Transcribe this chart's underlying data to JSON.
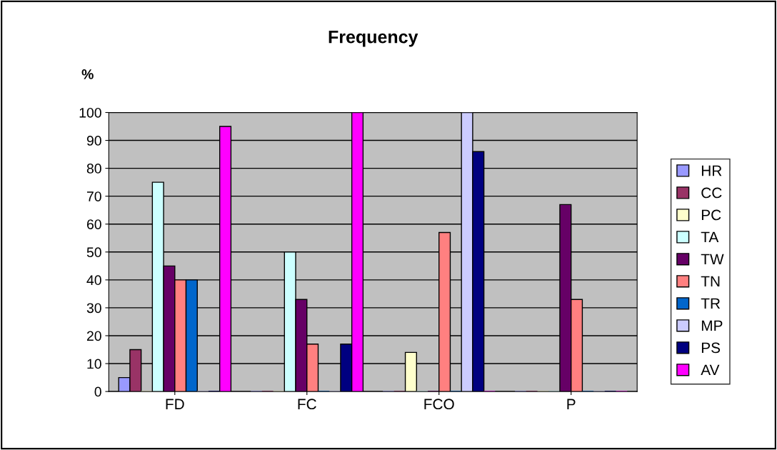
{
  "chart_data": {
    "type": "bar",
    "title": "Frequency",
    "ylabel": "%",
    "categories": [
      "FD",
      "FC",
      "FCO",
      "P"
    ],
    "series": [
      {
        "name": "HR",
        "color": "#9999ff",
        "values": [
          5,
          0,
          0,
          0
        ]
      },
      {
        "name": "CC",
        "color": "#993366",
        "values": [
          15,
          0,
          0,
          0
        ]
      },
      {
        "name": "PC",
        "color": "#ffffcc",
        "values": [
          0,
          0,
          14,
          0
        ]
      },
      {
        "name": "TA",
        "color": "#ccffff",
        "values": [
          75,
          50,
          0,
          0
        ]
      },
      {
        "name": "TW",
        "color": "#660066",
        "values": [
          45,
          33,
          0,
          67
        ]
      },
      {
        "name": "TN",
        "color": "#ff8080",
        "values": [
          40,
          17,
          57,
          33
        ]
      },
      {
        "name": "TR",
        "color": "#0066cc",
        "values": [
          40,
          0,
          0,
          0
        ]
      },
      {
        "name": "MP",
        "color": "#ccccff",
        "values": [
          0,
          0,
          100,
          0
        ]
      },
      {
        "name": "PS",
        "color": "#000080",
        "values": [
          0,
          17,
          86,
          0
        ]
      },
      {
        "name": "AV",
        "color": "#ff00ff",
        "values": [
          95,
          100,
          0,
          0
        ]
      }
    ],
    "ylim": [
      0,
      100
    ],
    "yticks": [
      0,
      10,
      20,
      30,
      40,
      50,
      60,
      70,
      80,
      90,
      100
    ],
    "grid": "y",
    "legend": "right"
  }
}
